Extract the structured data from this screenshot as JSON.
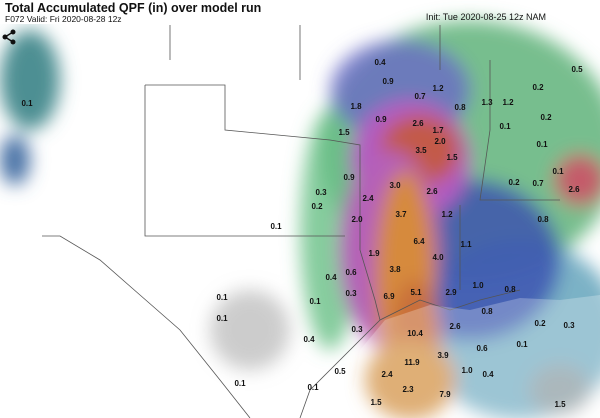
{
  "header": {
    "title": "Total Accumulated QPF (in) over model run",
    "valid": "F072 Valid: Fri 2020-08-28 12z",
    "init": "Init: Tue 2020-08-25 12z NAM"
  },
  "map": {
    "labels": [
      "0.1",
      "1.8",
      "1.5",
      "0.9",
      "2.6",
      "1.7",
      "2.0",
      "3.5",
      "1.5",
      "0.8",
      "1.2",
      "1.3",
      "1.2",
      "0.4",
      "0.9",
      "0.7",
      "0.2",
      "0.5",
      "0.2",
      "0.1",
      "0.1",
      "0.9",
      "3.0",
      "2.6",
      "2.4",
      "0.3",
      "0.2",
      "0.2",
      "0.7",
      "2.6",
      "0.1",
      "2.0",
      "3.7",
      "1.2",
      "0.8",
      "0.1",
      "6.4",
      "1.1",
      "1.9",
      "4.0",
      "0.4",
      "0.6",
      "3.8",
      "0.1",
      "0.1",
      "0.1",
      "0.3",
      "6.9",
      "5.1",
      "2.9",
      "1.0",
      "0.8",
      "0.8",
      "2.6",
      "0.3",
      "10.4",
      "0.4",
      "0.2",
      "0.3",
      "11.9",
      "3.9",
      "0.6",
      "0.1",
      "0.5",
      "2.4",
      "1.0",
      "0.4",
      "0.1",
      "0.1",
      "2.3",
      "7.9",
      "1.5",
      "1.5"
    ]
  }
}
